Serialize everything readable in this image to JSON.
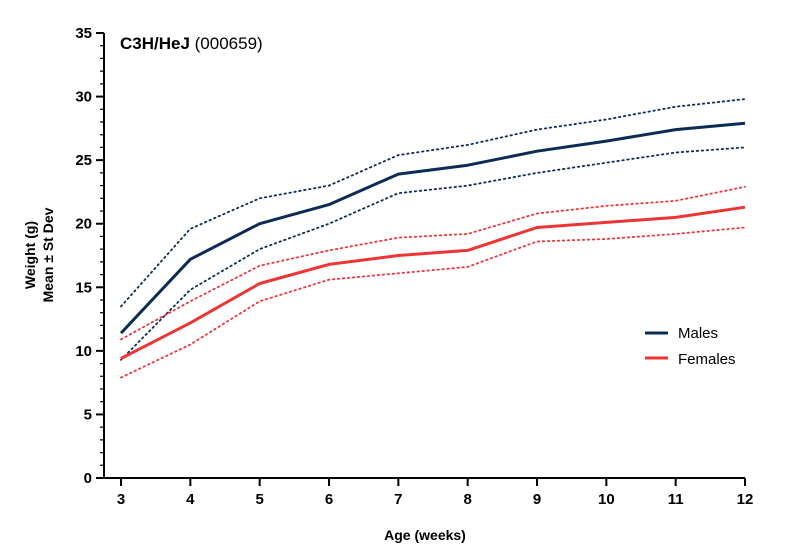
{
  "chart_data": {
    "type": "line",
    "title_bold": "C3H/HeJ",
    "title_rest": " (000659)",
    "xlabel": "Age (weeks)",
    "ylabel_line1": "Weight (g)",
    "ylabel_line2": "Mean ± St Dev",
    "x": [
      3,
      4,
      5,
      6,
      7,
      8,
      9,
      10,
      11,
      12
    ],
    "xlim": [
      3,
      12
    ],
    "ylim": [
      0,
      35
    ],
    "yticks": [
      0,
      5,
      10,
      15,
      20,
      25,
      30,
      35
    ],
    "legend_position": "right",
    "series": [
      {
        "name": "Males",
        "color": "#0d2c54",
        "mean": [
          11.4,
          17.2,
          20.0,
          21.5,
          23.9,
          24.6,
          25.7,
          26.5,
          27.4,
          27.9
        ],
        "upper": [
          13.5,
          19.6,
          22.0,
          23.0,
          25.4,
          26.2,
          27.4,
          28.2,
          29.2,
          29.8
        ],
        "lower": [
          9.3,
          14.8,
          18.0,
          20.0,
          22.4,
          23.0,
          24.0,
          24.8,
          25.6,
          26.0
        ]
      },
      {
        "name": "Females",
        "color": "#ee3536",
        "mean": [
          9.4,
          12.2,
          15.3,
          16.8,
          17.5,
          17.9,
          19.7,
          20.1,
          20.5,
          21.3
        ],
        "upper": [
          10.9,
          13.9,
          16.7,
          17.9,
          18.9,
          19.2,
          20.8,
          21.4,
          21.8,
          22.9
        ],
        "lower": [
          7.9,
          10.5,
          13.9,
          15.6,
          16.1,
          16.6,
          18.6,
          18.8,
          19.2,
          19.7
        ]
      }
    ]
  }
}
